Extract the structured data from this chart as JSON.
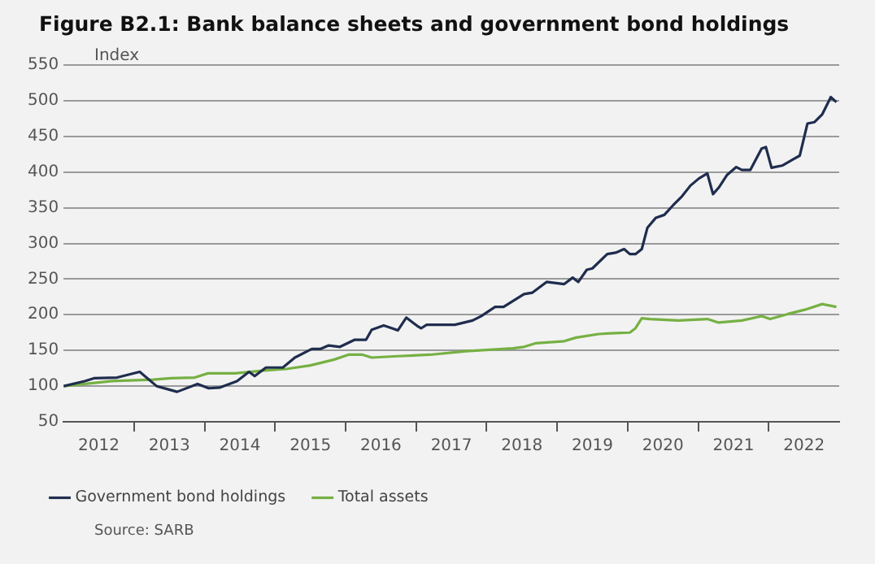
{
  "chart_data": {
    "type": "line",
    "title": "Figure B2.1: Bank balance sheets and government bond holdings",
    "ylabel": "Index",
    "annotations": [
      "Source: SARB"
    ],
    "xlim": [
      2012,
      2023
    ],
    "xticks": [
      {
        "value": 2012.5,
        "label": "2012"
      },
      {
        "value": 2013,
        "label": null
      },
      {
        "value": 2013.5,
        "label": "2013"
      },
      {
        "value": 2014,
        "label": null
      },
      {
        "value": 2014.5,
        "label": "2014"
      },
      {
        "value": 2015,
        "label": null
      },
      {
        "value": 2015.5,
        "label": "2015"
      },
      {
        "value": 2016,
        "label": null
      },
      {
        "value": 2016.5,
        "label": "2016"
      },
      {
        "value": 2017,
        "label": null
      },
      {
        "value": 2017.5,
        "label": "2017"
      },
      {
        "value": 2018,
        "label": null
      },
      {
        "value": 2018.5,
        "label": "2018"
      },
      {
        "value": 2019,
        "label": null
      },
      {
        "value": 2019.5,
        "label": "2019"
      },
      {
        "value": 2020,
        "label": null
      },
      {
        "value": 2020.5,
        "label": "2020"
      },
      {
        "value": 2021,
        "label": null
      },
      {
        "value": 2021.5,
        "label": "2021"
      },
      {
        "value": 2022,
        "label": null
      },
      {
        "value": 2022.5,
        "label": "2022"
      }
    ],
    "ylim": [
      50,
      550
    ],
    "yticks": [
      50,
      100,
      150,
      200,
      250,
      300,
      350,
      400,
      450,
      500,
      550
    ],
    "grid": "y",
    "legend": "bottom",
    "marker": "none",
    "line_style": "solid",
    "series": [
      {
        "name": "Government bond holdings",
        "color": "#1f2d4e",
        "x": [
          2012.0,
          2012.3,
          2012.43,
          2012.76,
          2013.08,
          2013.32,
          2013.61,
          2013.9,
          2014.06,
          2014.22,
          2014.46,
          2014.63,
          2014.71,
          2014.87,
          2015.11,
          2015.28,
          2015.52,
          2015.64,
          2015.76,
          2015.92,
          2016.13,
          2016.29,
          2016.37,
          2016.54,
          2016.66,
          2016.74,
          2016.86,
          2017.02,
          2017.07,
          2017.15,
          2017.55,
          2017.8,
          2017.92,
          2018.12,
          2018.24,
          2018.53,
          2018.65,
          2018.85,
          2019.1,
          2019.22,
          2019.3,
          2019.42,
          2019.5,
          2019.71,
          2019.83,
          2019.95,
          2020.03,
          2020.11,
          2020.2,
          2020.28,
          2020.4,
          2020.52,
          2020.64,
          2020.77,
          2020.89,
          2021.01,
          2021.13,
          2021.21,
          2021.29,
          2021.41,
          2021.54,
          2021.62,
          2021.74,
          2021.9,
          2021.96,
          2022.04,
          2022.19,
          2022.35,
          2022.44,
          2022.55,
          2022.65,
          2022.76,
          2022.88,
          2022.96
        ],
        "values": [
          100,
          107,
          111,
          112,
          120,
          100,
          92,
          103,
          97,
          98,
          107,
          120,
          114,
          126,
          126,
          140,
          152,
          152,
          157,
          155,
          165,
          165,
          179,
          185,
          181,
          178,
          196,
          184,
          181,
          186,
          186,
          192,
          198,
          211,
          211,
          229,
          231,
          246,
          243,
          252,
          246,
          263,
          265,
          285,
          287,
          292,
          285,
          285,
          292,
          322,
          336,
          340,
          353,
          366,
          381,
          391,
          398,
          369,
          378,
          396,
          407,
          403,
          403,
          433,
          435,
          406,
          409,
          418,
          423,
          468,
          470,
          481,
          505,
          498
        ]
      },
      {
        "name": "Total assets",
        "color": "#76b043",
        "x": [
          2012.0,
          2012.69,
          2013.27,
          2013.52,
          2013.86,
          2014.05,
          2014.43,
          2014.85,
          2015.16,
          2015.5,
          2015.83,
          2016.04,
          2016.24,
          2016.37,
          2016.74,
          2017.2,
          2017.71,
          2018.37,
          2018.53,
          2018.69,
          2019.1,
          2019.27,
          2019.59,
          2019.76,
          2020.03,
          2020.11,
          2020.2,
          2020.32,
          2020.72,
          2021.13,
          2021.29,
          2021.62,
          2021.9,
          2022.02,
          2022.27,
          2022.51,
          2022.76,
          2022.96
        ],
        "values": [
          100,
          107,
          109,
          111,
          112,
          118,
          118,
          122,
          124,
          129,
          137,
          144,
          144,
          140,
          142,
          144,
          149,
          153,
          155,
          160,
          163,
          168,
          173,
          174,
          175,
          181,
          195,
          194,
          192,
          194,
          189,
          192,
          198,
          194,
          201,
          207,
          215,
          211
        ]
      }
    ]
  }
}
